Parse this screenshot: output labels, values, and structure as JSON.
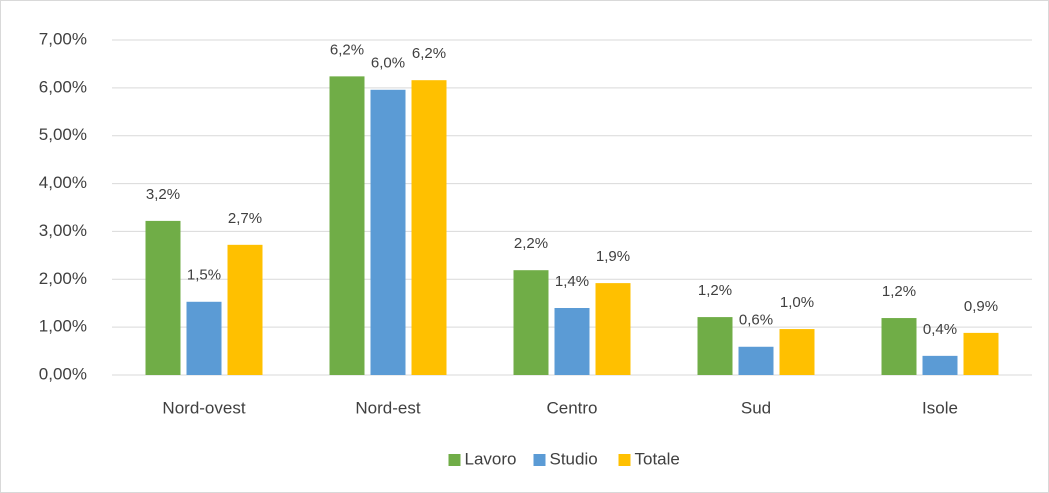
{
  "chart_data": {
    "type": "bar",
    "categories": [
      "Nord-ovest",
      "Nord-est",
      "Centro",
      "Sud",
      "Isole"
    ],
    "series": [
      {
        "name": "Lavoro",
        "color": "#70ad47",
        "values": [
          3.22,
          6.24,
          2.19,
          1.21,
          1.19
        ],
        "value_labels": [
          "3,2%",
          "6,2%",
          "2,2%",
          "1,2%",
          "1,2%"
        ]
      },
      {
        "name": "Studio",
        "color": "#5b9bd5",
        "values": [
          1.53,
          5.96,
          1.4,
          0.59,
          0.4
        ],
        "value_labels": [
          "1,5%",
          "6,0%",
          "1,4%",
          "0,6%",
          "0,4%"
        ]
      },
      {
        "name": "Totale",
        "color": "#ffc000",
        "values": [
          2.72,
          6.16,
          1.92,
          0.96,
          0.88
        ],
        "value_labels": [
          "2,7%",
          "6,2%",
          "1,9%",
          "1,0%",
          "0,9%"
        ]
      }
    ],
    "ylim": [
      0,
      7
    ],
    "yticks": [
      {
        "value": 0,
        "label": "0,00%"
      },
      {
        "value": 1,
        "label": "1,00%"
      },
      {
        "value": 2,
        "label": "2,00%"
      },
      {
        "value": 3,
        "label": "3,00%"
      },
      {
        "value": 4,
        "label": "4,00%"
      },
      {
        "value": 5,
        "label": "5,00%"
      },
      {
        "value": 6,
        "label": "6,00%"
      },
      {
        "value": 7,
        "label": "7,00%"
      }
    ],
    "grid": true,
    "legend": "bottom"
  }
}
